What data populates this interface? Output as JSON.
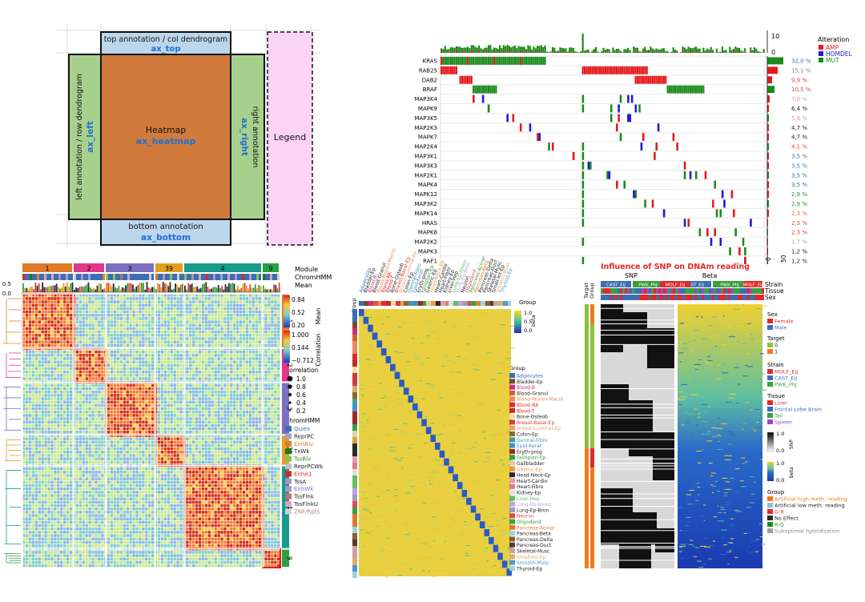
{
  "layout_diagram": {
    "top": "top annotation / col dendrogram",
    "top_ax": "ax_top",
    "left": "left annotation / row dendrogram",
    "left_ax": "ax_left",
    "heatmap": "Heatmap",
    "heatmap_ax": "ax_heatmap",
    "right": "right annotation",
    "right_ax": "ax_right",
    "bottom": "bottom annotation",
    "bottom_ax": "ax_bottom",
    "legend": "Legend",
    "colors": {
      "heatmap": "#d07a3c",
      "annot": "#bcd6ec",
      "side": "#a8d08d",
      "legend": "#fad3f6",
      "axlabel": "#1f6fd1"
    }
  },
  "oncoprint": {
    "genes": [
      "KRAS",
      "RAB25",
      "DAB2",
      "BRAF",
      "MAP3K4",
      "MAPK9",
      "MAP3K5",
      "MAP2K3",
      "MAPK7",
      "MAP2K4",
      "MAP3K1",
      "MAP3K3",
      "MAP2K1",
      "MAPK4",
      "MAPK12",
      "MAP3K2",
      "MAPK14",
      "HRAS",
      "MAPK8",
      "MAP2K2",
      "MAPK3",
      "RAF1"
    ],
    "percents": [
      "32,0 %",
      "15,1 %",
      "9,9 %",
      "10,5 %",
      "7,0 %",
      "6,4 %",
      "5,8 %",
      "4,7 %",
      "4,7 %",
      "4,1 %",
      "3,5 %",
      "3,5 %",
      "3,5 %",
      "3,5 %",
      "2,9 %",
      "2,9 %",
      "2,3 %",
      "2,3 %",
      "2,3 %",
      "1,7 %",
      "1,2 %",
      "1,2 %"
    ],
    "percent_colors": [
      "#3a6fb5",
      "#888",
      "#d44",
      "#d44",
      "#d9a",
      "#222",
      "#d9a",
      "#222",
      "#222",
      "#d44",
      "#3a6fb5",
      "#3a6fb5",
      "#3a6fb5",
      "#3a6fb5",
      "#2a8a2a",
      "#2a8a2a",
      "#e67a22",
      "#d44",
      "#d44",
      "#b9c",
      "#222",
      "#222"
    ],
    "legend_title": "Alteration",
    "legend": [
      {
        "label": "AMP",
        "color": "#e41a1c"
      },
      {
        "label": "HOMDEL",
        "color": "#1a1adc"
      },
      {
        "label": "MUT",
        "color": "#1a8a1a"
      }
    ],
    "top_ticks": [
      "10",
      "0"
    ],
    "bottom_ticks": [
      "0",
      "50"
    ]
  },
  "correlation_heatmap": {
    "modules": [
      {
        "label": "1",
        "color": "#e07b2a"
      },
      {
        "label": "2",
        "color": "#e0388a"
      },
      {
        "label": "3",
        "color": "#7b6fc0"
      },
      {
        "label": "39",
        "color": "#e0a020"
      },
      {
        "label": "4",
        "color": "#1a9a8a"
      },
      {
        "label": "9",
        "color": "#2aa040"
      }
    ],
    "row_labels": [
      "Module",
      "ChromHMM",
      "Mean"
    ],
    "mean_ticks": [
      "0.5",
      "0.0"
    ],
    "mean_legend": {
      "title": "Mean",
      "values": [
        "0.84",
        "0.52",
        "0.20"
      ]
    },
    "corr_legend": {
      "title": "Correlation",
      "values": [
        "1.000",
        "0.144",
        "−0.712"
      ]
    },
    "size_legend": {
      "title": "Correlation",
      "values": [
        "1.0",
        "0.8",
        "0.6",
        "0.4",
        "0.2"
      ]
    },
    "chromhmm_title": "ChromHMM",
    "chromhmm": [
      {
        "label": "Quies",
        "color": "#3a6fb5",
        "text": "#3a6fb5"
      },
      {
        "label": "ReprPC",
        "color": "#9aa6d0",
        "text": "#222"
      },
      {
        "label": "EnhBiv",
        "color": "#e07b2a",
        "text": "#e07b2a"
      },
      {
        "label": "TxWk",
        "color": "#1a7a1a",
        "text": "#222"
      },
      {
        "label": "TssBiv",
        "color": "#8cc060",
        "text": "#2a8a2a"
      },
      {
        "label": "ReprPCWk",
        "color": "#c0c0c0",
        "text": "#222"
      },
      {
        "label": "EnhA1",
        "color": "#d42a2a",
        "text": "#d42a2a"
      },
      {
        "label": "TssA",
        "color": "#b090c0",
        "text": "#222"
      },
      {
        "label": "EnhWk",
        "color": "#b090c8",
        "text": "#7b6fc0"
      },
      {
        "label": "TssFlnk",
        "color": "#c07070",
        "text": "#222"
      },
      {
        "label": "TssFlnkU",
        "color": "#e0a0c0",
        "text": "#222"
      },
      {
        "label": "ZNF/Rpts",
        "color": "#d0d0d0",
        "text": "#b08080"
      }
    ]
  },
  "methylation_heatmap": {
    "col_labels": [
      "Adipocytes",
      "Bladder-Ep",
      "Blood-B",
      "Blood-Granul",
      "Blood-Mono+Macro",
      "Blood-NK",
      "Blood-T",
      "Bone-Osteob",
      "Breast-Basal-Ep",
      "Breast-Luminal-Ep",
      "Colon-Ep",
      "Dermal-Fibro",
      "Epid-Kerat",
      "Eryth-prog",
      "Fallopian-Ep",
      "Gastric-Ep",
      "Head-Neck-Ep",
      "Heart-Cardio",
      "Heart-Fibro",
      "Kidney-Ep",
      "Liver-Hep",
      "Lung-Ep-Alveo",
      "Lung-Ep-Bron",
      "Neuron",
      "Oligodend",
      "Pancreas-Acinar",
      "Pancreas-Beta",
      "Pancreas-Delta",
      "Pancreas-Duct",
      "Skeletal-Musc",
      "Small-Int-Ep",
      "Smooth-Musc",
      "Thyroid-Ep"
    ],
    "group_label": "Group",
    "beta_title": "beta",
    "beta_ticks": [
      "1.0",
      "0.5",
      "0.0"
    ],
    "legend_title": "Group",
    "legend": [
      {
        "label": "Adipocytes",
        "color": "#3a6fb5",
        "text": "#3a6fb5"
      },
      {
        "label": "Bladder-Ep",
        "color": "#7a4a2a",
        "text": "#222"
      },
      {
        "label": "Blood-B",
        "color": "#d42a7a",
        "text": "#d42a7a"
      },
      {
        "label": "Blood-Granul",
        "color": "#d4602a",
        "text": "#222"
      },
      {
        "label": "Blood-Mono+Macro",
        "color": "#e88a60",
        "text": "#e88a60"
      },
      {
        "label": "Blood-NK",
        "color": "#e02a2a",
        "text": "#e02a2a"
      },
      {
        "label": "Blood-T",
        "color": "#c42a2a",
        "text": "#c42a2a"
      },
      {
        "label": "Bone-Osteob",
        "color": "#f0e0a0",
        "text": "#222"
      },
      {
        "label": "Breast-Basal-Ep",
        "color": "#d43a3a",
        "text": "#d43a3a"
      },
      {
        "label": "Breast-Luminal-Ep",
        "color": "#e0a070",
        "text": "#e0a070"
      },
      {
        "label": "Colon-Ep",
        "color": "#8a6a2a",
        "text": "#222"
      },
      {
        "label": "Dermal-Fibro",
        "color": "#3aa0a0",
        "text": "#3aa0a0"
      },
      {
        "label": "Epid-Kerat",
        "color": "#4a8ad0",
        "text": "#4a8ad0"
      },
      {
        "label": "Eryth-prog",
        "color": "#a02a2a",
        "text": "#222"
      },
      {
        "label": "Fallopian-Ep",
        "color": "#3aa040",
        "text": "#3aa040"
      },
      {
        "label": "Gallbladder",
        "color": "#e0d0a0",
        "text": "#222"
      },
      {
        "label": "Gastric-Ep",
        "color": "#e0a040",
        "text": "#e0a040"
      },
      {
        "label": "Head-Neck-Ep",
        "color": "#2a2a2a",
        "text": "#222"
      },
      {
        "label": "Heart-Cardio",
        "color": "#e0a0b0",
        "text": "#222"
      },
      {
        "label": "Heart-Fibro",
        "color": "#e07a8a",
        "text": "#222"
      },
      {
        "label": "Kidney-Ep",
        "color": "#e0e0e0",
        "text": "#222"
      },
      {
        "label": "Liver-Hep",
        "color": "#60c060",
        "text": "#60c060"
      },
      {
        "label": "Lung-Ep-Alveo",
        "color": "#c0a0e0",
        "text": "#c0a0e0"
      },
      {
        "label": "Lung-Ep-Bron",
        "color": "#9a9ac0",
        "text": "#222"
      },
      {
        "label": "Neuron",
        "color": "#e04a4a",
        "text": "#e04a4a"
      },
      {
        "label": "Oligodend",
        "color": "#3aa040",
        "text": "#3aa040"
      },
      {
        "label": "Pancreas-Acinar",
        "color": "#e07a2a",
        "text": "#e07a2a"
      },
      {
        "label": "Pancreas-Beta",
        "color": "#a0d0e0",
        "text": "#222"
      },
      {
        "label": "Pancreas-Delta",
        "color": "#8a5a3a",
        "text": "#222"
      },
      {
        "label": "Pancreas-Duct",
        "color": "#5a3a2a",
        "text": "#222"
      },
      {
        "label": "Skeletal-Musc",
        "color": "#d0a0a0",
        "text": "#222"
      },
      {
        "label": "Small-Int-Ep",
        "color": "#e0b060",
        "text": "#e0b060"
      },
      {
        "label": "Smooth-Musc",
        "color": "#4a9ad0",
        "text": "#4a9ad0"
      },
      {
        "label": "Thyroid-Ep",
        "color": "#a0d0e0",
        "text": "#222"
      }
    ]
  },
  "snp_heatmap": {
    "title": "Influence of SNP on DNAm reading",
    "snp_label": "SNP",
    "beta_label": "Beta",
    "strains": [
      "CAST_EiJ",
      "PWK_PhJ",
      "MOLF_EiJ"
    ],
    "row_annots": [
      "Strain",
      "Tissue",
      "Sex"
    ],
    "left_annots": [
      "Target",
      "Group"
    ],
    "sex": {
      "title": "Sex",
      "items": [
        {
          "label": "Female",
          "color": "#e02a2a",
          "text": "#e02a2a"
        },
        {
          "label": "Male",
          "color": "#3a6fb5",
          "text": "#3a6fb5"
        }
      ]
    },
    "target": {
      "title": "Target",
      "items": [
        {
          "label": "0",
          "color": "#8cc040",
          "text": "#222"
        },
        {
          "label": "1",
          "color": "#f07a1a",
          "text": "#222"
        }
      ]
    },
    "strain": {
      "title": "Strain",
      "items": [
        {
          "label": "MOLF_EiJ",
          "color": "#e02a2a",
          "text": "#e02a2a"
        },
        {
          "label": "CAST_EiJ",
          "color": "#3a6fb5",
          "text": "#3a6fb5"
        },
        {
          "label": "PWK_PhJ",
          "color": "#3aa040",
          "text": "#3aa040"
        }
      ]
    },
    "tissue": {
      "title": "Tissue",
      "items": [
        {
          "label": "Liver",
          "color": "#e02a2a",
          "text": "#e02a2a"
        },
        {
          "label": "Frontal Lobe Brain",
          "color": "#3a6fb5",
          "text": "#3a6fb5"
        },
        {
          "label": "Tail",
          "color": "#3aa040",
          "text": "#3aa040"
        },
        {
          "label": "Spleen",
          "color": "#9a4ac0",
          "text": "#9a4ac0"
        }
      ]
    },
    "snp_scale": {
      "title": "SNP",
      "ticks": [
        "1.0",
        "0.0"
      ]
    },
    "beta_scale": {
      "title": "beta",
      "ticks": [
        "1.0",
        "0.0"
      ]
    },
    "group": {
      "title": "Group",
      "items": [
        {
          "label": "Artificial high meth. reading",
          "color": "#f07a1a",
          "text": "#f07a1a"
        },
        {
          "label": "Artificial low meth. reading",
          "color": "#8ac0e0",
          "text": "#222"
        },
        {
          "label": "G-R",
          "color": "#e02a2a",
          "text": "#e02a2a"
        },
        {
          "label": "No Effect",
          "color": "#2a2a2a",
          "text": "#222"
        },
        {
          "label": "R-G",
          "color": "#1a8a1a",
          "text": "#1a8a1a"
        },
        {
          "label": "Suboptimal hybridization",
          "color": "#a0a0a0",
          "text": "#888"
        }
      ]
    }
  }
}
